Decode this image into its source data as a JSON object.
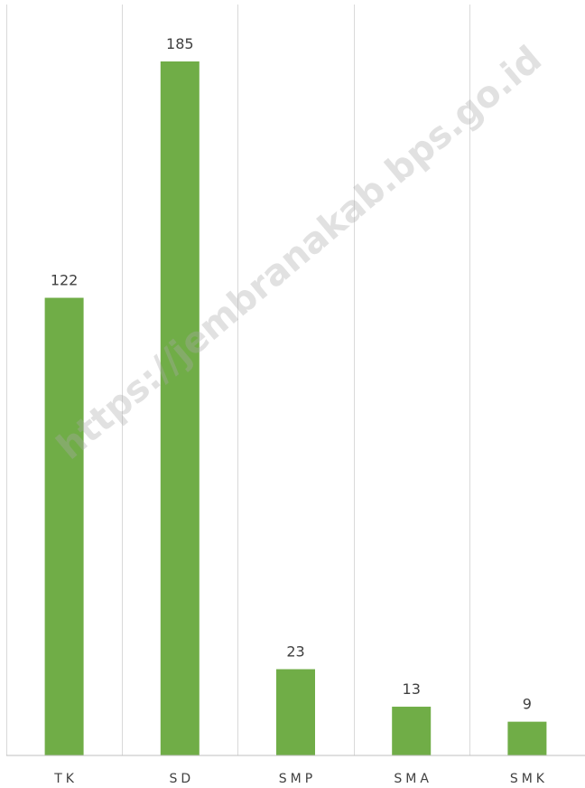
{
  "chart_data": {
    "type": "bar",
    "categories": [
      "TK",
      "SD",
      "SMP",
      "SMA",
      "SMK"
    ],
    "values": [
      122,
      185,
      23,
      13,
      9
    ],
    "title": "",
    "xlabel": "",
    "ylabel": "",
    "ylim": [
      0,
      200
    ],
    "grid": "vertical category separators",
    "legend": "none",
    "data_labels": true,
    "bar_color": "#70ad47"
  },
  "watermark": "https://jembranakab.bps.go.id"
}
